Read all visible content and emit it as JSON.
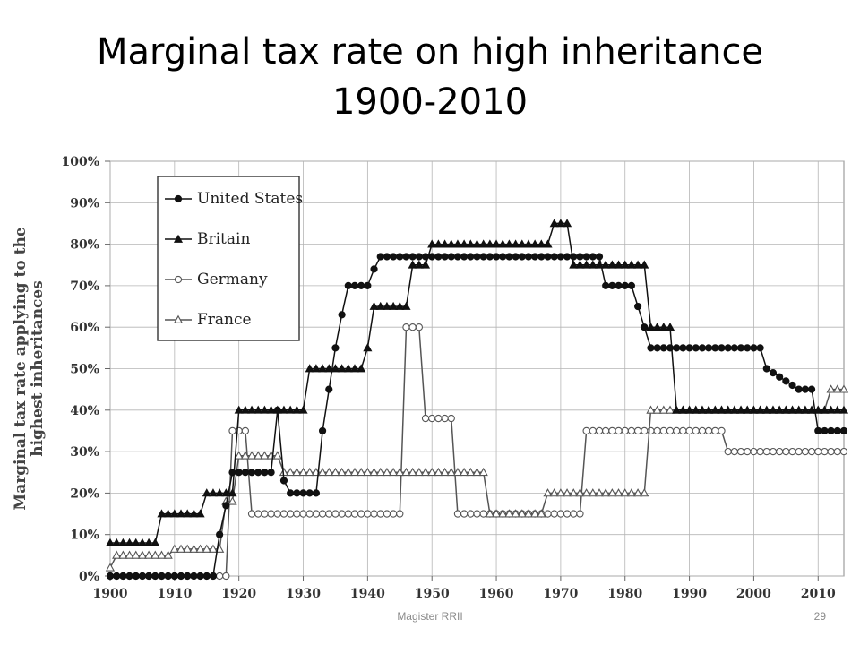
{
  "slide": {
    "title_line1": "Marginal tax rate on high inheritance",
    "title_line2": "1900-2010",
    "footer_text": "Magister RRII",
    "page_number": "29"
  },
  "chart_data": {
    "type": "line",
    "title": "",
    "xlabel": "",
    "ylabel": "Marginal tax rate applying to the highest inheritances",
    "xlim": [
      1900,
      2014
    ],
    "ylim": [
      0,
      100
    ],
    "x_ticks": [
      1900,
      1910,
      1920,
      1930,
      1940,
      1950,
      1960,
      1970,
      1980,
      1990,
      2000,
      2010
    ],
    "x_tick_labels": [
      "1900",
      "1910",
      "1920",
      "1930",
      "1940",
      "1950",
      "1960",
      "1970",
      "1980",
      "1990",
      "2000",
      "2010"
    ],
    "y_ticks": [
      0,
      10,
      20,
      30,
      40,
      50,
      60,
      70,
      80,
      90,
      100
    ],
    "y_tick_labels": [
      "0%",
      "10%",
      "20%",
      "30%",
      "40%",
      "50%",
      "60%",
      "70%",
      "80%",
      "90%",
      "100%"
    ],
    "grid": true,
    "legend_position": "top-left",
    "series": [
      {
        "name": "United States",
        "marker": "filled-circle",
        "color": "#111111",
        "points": [
          [
            1900,
            0
          ],
          [
            1916,
            0
          ],
          [
            1917,
            10
          ],
          [
            1918,
            17
          ],
          [
            1919,
            25
          ],
          [
            1925,
            25
          ],
          [
            1926,
            40
          ],
          [
            1927,
            23
          ],
          [
            1928,
            20
          ],
          [
            1932,
            20
          ],
          [
            1933,
            35
          ],
          [
            1934,
            45
          ],
          [
            1935,
            55
          ],
          [
            1936,
            63
          ],
          [
            1937,
            70
          ],
          [
            1940,
            70
          ],
          [
            1941,
            74
          ],
          [
            1942,
            77
          ],
          [
            1976,
            77
          ],
          [
            1977,
            70
          ],
          [
            1981,
            70
          ],
          [
            1982,
            65
          ],
          [
            1983,
            60
          ],
          [
            1984,
            55
          ],
          [
            2001,
            55
          ],
          [
            2002,
            50
          ],
          [
            2003,
            49
          ],
          [
            2004,
            48
          ],
          [
            2005,
            47
          ],
          [
            2006,
            46
          ],
          [
            2007,
            45
          ],
          [
            2009,
            45
          ],
          [
            2010,
            35
          ],
          [
            2014,
            35
          ]
        ]
      },
      {
        "name": "Britain",
        "marker": "filled-triangle",
        "color": "#111111",
        "points": [
          [
            1900,
            8
          ],
          [
            1907,
            8
          ],
          [
            1908,
            15
          ],
          [
            1914,
            15
          ],
          [
            1915,
            20
          ],
          [
            1919,
            20
          ],
          [
            1920,
            40
          ],
          [
            1930,
            40
          ],
          [
            1931,
            50
          ],
          [
            1939,
            50
          ],
          [
            1940,
            55
          ],
          [
            1941,
            65
          ],
          [
            1946,
            65
          ],
          [
            1947,
            75
          ],
          [
            1949,
            75
          ],
          [
            1950,
            80
          ],
          [
            1968,
            80
          ],
          [
            1969,
            85
          ],
          [
            1971,
            85
          ],
          [
            1972,
            75
          ],
          [
            1983,
            75
          ],
          [
            1984,
            60
          ],
          [
            1987,
            60
          ],
          [
            1988,
            40
          ],
          [
            2014,
            40
          ]
        ]
      },
      {
        "name": "Germany",
        "marker": "open-circle",
        "color": "#555555",
        "points": [
          [
            1900,
            0
          ],
          [
            1918,
            0
          ],
          [
            1919,
            35
          ],
          [
            1921,
            35
          ],
          [
            1922,
            15
          ],
          [
            1945,
            15
          ],
          [
            1946,
            60
          ],
          [
            1948,
            60
          ],
          [
            1949,
            38
          ],
          [
            1953,
            38
          ],
          [
            1954,
            15
          ],
          [
            1973,
            15
          ],
          [
            1974,
            35
          ],
          [
            1995,
            35
          ],
          [
            1996,
            30
          ],
          [
            2014,
            30
          ]
        ]
      },
      {
        "name": "France",
        "marker": "open-triangle",
        "color": "#555555",
        "points": [
          [
            1900,
            2
          ],
          [
            1901,
            5
          ],
          [
            1909,
            5
          ],
          [
            1910,
            6.5
          ],
          [
            1917,
            6.5
          ],
          [
            1918,
            18
          ],
          [
            1919,
            18
          ],
          [
            1920,
            29
          ],
          [
            1926,
            29
          ],
          [
            1927,
            25
          ],
          [
            1958,
            25
          ],
          [
            1959,
            15
          ],
          [
            1967,
            15
          ],
          [
            1968,
            20
          ],
          [
            1983,
            20
          ],
          [
            1984,
            40
          ],
          [
            2011,
            40
          ],
          [
            2012,
            45
          ],
          [
            2014,
            45
          ]
        ]
      }
    ]
  }
}
